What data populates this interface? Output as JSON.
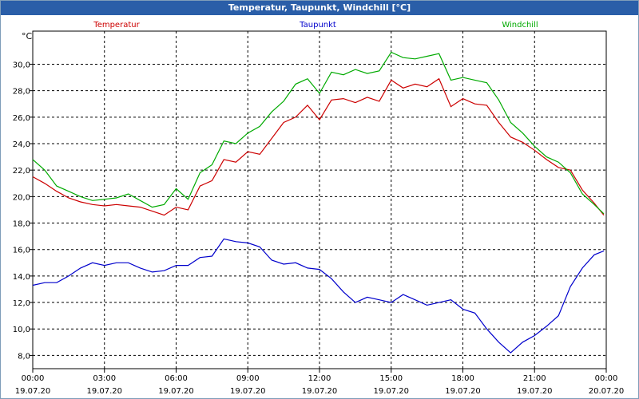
{
  "window": {
    "title": "Temperatur, Taupunkt, Windchill [°C]"
  },
  "chart_data": {
    "type": "line",
    "ylabel": "°C",
    "ylim": [
      7,
      32.5
    ],
    "yticks": [
      8.0,
      10.0,
      12.0,
      14.0,
      16.0,
      18.0,
      20.0,
      22.0,
      24.0,
      26.0,
      28.0,
      30.0
    ],
    "ytick_labels": [
      "8,0",
      "10,0",
      "12,0",
      "14,0",
      "16,0",
      "18,0",
      "20,0",
      "22,0",
      "24,0",
      "26,0",
      "28,0",
      "30,0"
    ],
    "xlim": [
      0,
      24
    ],
    "xticks": [
      0,
      3,
      6,
      9,
      12,
      15,
      18,
      21,
      24
    ],
    "xtick_labels": [
      [
        "00:00",
        "19.07.20"
      ],
      [
        "03:00",
        "19.07.20"
      ],
      [
        "06:00",
        "19.07.20"
      ],
      [
        "09:00",
        "19.07.20"
      ],
      [
        "12:00",
        "19.07.20"
      ],
      [
        "15:00",
        "19.07.20"
      ],
      [
        "18:00",
        "19.07.20"
      ],
      [
        "21:00",
        "19.07.20"
      ],
      [
        "00:00",
        "20.07.20"
      ]
    ],
    "grid": true,
    "legend": "top",
    "series": [
      {
        "name": "Temperatur",
        "color": "#cc0000",
        "x": [
          0,
          0.5,
          1,
          1.5,
          2,
          2.5,
          3,
          3.5,
          4,
          4.5,
          5,
          5.5,
          6,
          6.5,
          7,
          7.5,
          8,
          8.5,
          9,
          9.5,
          10,
          10.5,
          11,
          11.5,
          12,
          12.5,
          13,
          13.5,
          14,
          14.5,
          15,
          15.5,
          16,
          16.5,
          17,
          17.5,
          18,
          18.5,
          19,
          19.5,
          20,
          20.5,
          21,
          21.5,
          22,
          22.5,
          23,
          23.5,
          23.9
        ],
        "y": [
          21.5,
          21,
          20.4,
          19.9,
          19.6,
          19.4,
          19.3,
          19.4,
          19.3,
          19.2,
          18.9,
          18.6,
          19.2,
          19.0,
          20.8,
          21.2,
          22.8,
          22.6,
          23.4,
          23.2,
          24.4,
          25.6,
          26.0,
          26.9,
          25.8,
          27.3,
          27.4,
          27.1,
          27.5,
          27.2,
          28.8,
          28.2,
          28.5,
          28.3,
          28.9,
          26.8,
          27.4,
          27.0,
          26.9,
          25.6,
          24.5,
          24.1,
          23.5,
          22.8,
          22.2,
          22.0,
          20.5,
          19.5,
          18.6
        ]
      },
      {
        "name": "Taupunkt",
        "color": "#0000cc",
        "x": [
          0,
          0.5,
          1,
          1.5,
          2,
          2.5,
          3,
          3.5,
          4,
          4.5,
          5,
          5.5,
          6,
          6.5,
          7,
          7.5,
          8,
          8.5,
          9,
          9.5,
          10,
          10.5,
          11,
          11.5,
          12,
          12.5,
          13,
          13.5,
          14,
          14.5,
          15,
          15.5,
          16,
          16.5,
          17,
          17.5,
          18,
          18.5,
          19,
          19.5,
          20,
          20.5,
          21,
          21.5,
          22,
          22.5,
          23,
          23.5,
          23.9
        ],
        "y": [
          13.3,
          13.5,
          13.5,
          14.0,
          14.6,
          15.0,
          14.8,
          15.0,
          15.0,
          14.6,
          14.3,
          14.4,
          14.8,
          14.8,
          15.4,
          15.5,
          16.8,
          16.6,
          16.5,
          16.2,
          15.2,
          14.9,
          15.0,
          14.6,
          14.5,
          13.8,
          12.8,
          12.0,
          12.4,
          12.2,
          12.0,
          12.6,
          12.2,
          11.8,
          12.0,
          12.2,
          11.5,
          11.2,
          10.0,
          9.0,
          8.2,
          9.0,
          9.5,
          10.2,
          11.0,
          13.2,
          14.6,
          15.6,
          15.9
        ]
      },
      {
        "name": "Windchill",
        "color": "#00aa00",
        "x": [
          0,
          0.5,
          1,
          1.5,
          2,
          2.5,
          3,
          3.5,
          4,
          4.5,
          5,
          5.5,
          6,
          6.5,
          7,
          7.5,
          8,
          8.5,
          9,
          9.5,
          10,
          10.5,
          11,
          11.5,
          12,
          12.5,
          13,
          13.5,
          14,
          14.5,
          15,
          15.5,
          16,
          16.5,
          17,
          17.5,
          18,
          18.5,
          19,
          19.5,
          20,
          20.5,
          21,
          21.5,
          22,
          22.5,
          23,
          23.5,
          23.9
        ],
        "y": [
          22.8,
          22.0,
          20.8,
          20.4,
          20.0,
          19.7,
          19.8,
          19.9,
          20.2,
          19.7,
          19.2,
          19.4,
          20.6,
          19.8,
          21.8,
          22.4,
          24.2,
          24.0,
          24.8,
          25.3,
          26.4,
          27.2,
          28.5,
          28.9,
          27.8,
          29.4,
          29.2,
          29.6,
          29.3,
          29.5,
          30.9,
          30.5,
          30.4,
          30.6,
          30.8,
          28.8,
          29.0,
          28.8,
          28.6,
          27.3,
          25.6,
          24.8,
          23.8,
          23.0,
          22.6,
          21.8,
          20.2,
          19.4,
          18.7
        ]
      }
    ]
  }
}
